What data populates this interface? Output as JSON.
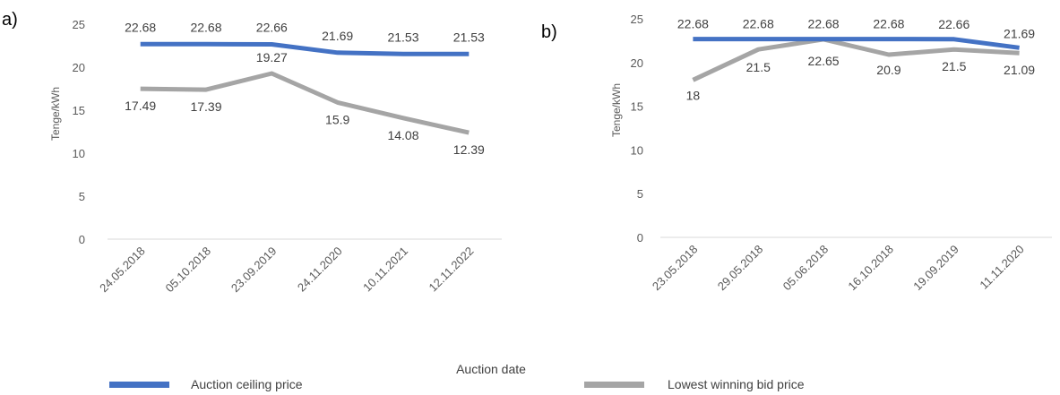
{
  "panel_labels": [
    "a)",
    "b)"
  ],
  "x_axis_title": "Auction date",
  "legend": {
    "position": "bottom",
    "items": [
      {
        "label": "Auction ceiling price",
        "color": "#4472C4"
      },
      {
        "label": "Lowest winning bid price",
        "color": "#A5A5A5"
      }
    ]
  },
  "chart_data": [
    {
      "type": "line",
      "panel": "a)",
      "ylabel": "Tenge/kWh",
      "ylim": [
        0,
        25
      ],
      "yticks": [
        0,
        5,
        10,
        15,
        20,
        25
      ],
      "grid": false,
      "categories": [
        "24.05.2018",
        "05.10.2018",
        "23.09.2019",
        "24.11.2020",
        "10.11.2021",
        "12.11.2022"
      ],
      "series": [
        {
          "name": "Auction ceiling price",
          "color": "#4472C4",
          "values": [
            22.68,
            22.68,
            22.66,
            21.69,
            21.53,
            21.53
          ]
        },
        {
          "name": "Lowest winning bid price",
          "color": "#A5A5A5",
          "values": [
            17.49,
            17.39,
            19.27,
            15.9,
            14.08,
            12.39
          ]
        }
      ],
      "data_labels": [
        [
          "22.68",
          "22.68",
          "22.66",
          "21.69",
          "21.53",
          "21.53"
        ],
        [
          "17.49",
          "17.39",
          "19.27",
          "15.9",
          "14.08",
          "12.39"
        ]
      ]
    },
    {
      "type": "line",
      "panel": "b)",
      "ylabel": "Tenge/kWh",
      "ylim": [
        0,
        25
      ],
      "yticks": [
        0,
        5,
        10,
        15,
        20,
        25
      ],
      "grid": false,
      "categories": [
        "23.05.2018",
        "29.05.2018",
        "05.06.2018",
        "16.10.2018",
        "19.09.2019",
        "11.11.2020"
      ],
      "series": [
        {
          "name": "Auction ceiling price",
          "color": "#4472C4",
          "values": [
            22.68,
            22.68,
            22.68,
            22.68,
            22.66,
            21.69
          ]
        },
        {
          "name": "Lowest winning bid price",
          "color": "#A5A5A5",
          "values": [
            18,
            21.5,
            22.65,
            20.9,
            21.5,
            21.09
          ]
        }
      ],
      "data_labels": [
        [
          "22.68",
          "22.68",
          "22.68",
          "22.68",
          "22.66",
          "21.69"
        ],
        [
          "18",
          "21.5",
          "22.65",
          "20.9",
          "21.5",
          "21.09"
        ]
      ]
    }
  ]
}
